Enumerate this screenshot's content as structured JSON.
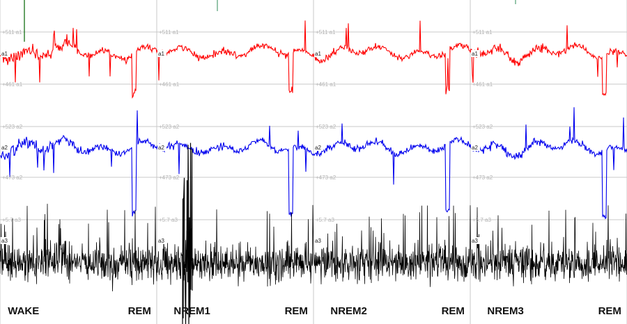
{
  "chart_data": {
    "type": "line",
    "title": "",
    "xlabel": "",
    "ylabel": "",
    "grid": true,
    "panels": [
      {
        "stage": "WAKE",
        "label_x_fraction": 0.3
      },
      {
        "stage": "REM",
        "label_x_fraction": 0.78
      },
      {
        "stage": "NREM1",
        "label_x_fraction": 0.45
      },
      {
        "stage": "REM",
        "label_x_fraction": 0.78
      },
      {
        "stage": "NREM2",
        "label_x_fraction": 0.45
      },
      {
        "stage": "REM",
        "label_x_fraction": 0.78
      },
      {
        "stage": "NREM3",
        "label_x_fraction": 0.45
      },
      {
        "stage": "REM",
        "label_x_fraction": 0.78
      }
    ],
    "series": [
      {
        "name": "a1",
        "color": "#ff0000",
        "scale_labels": {
          "upper": "+511 a1",
          "lower": "+461 a1"
        },
        "style": "continuous"
      },
      {
        "name": "a2",
        "color": "#0000ee",
        "scale_labels": {
          "upper": "+523 a2",
          "lower": "+473 a2"
        },
        "style": "continuous"
      },
      {
        "name": "a3",
        "color": "#000000",
        "scale_labels": {
          "upper": "+5.7 a3",
          "lower": ""
        },
        "style": "spiky"
      }
    ]
  }
}
